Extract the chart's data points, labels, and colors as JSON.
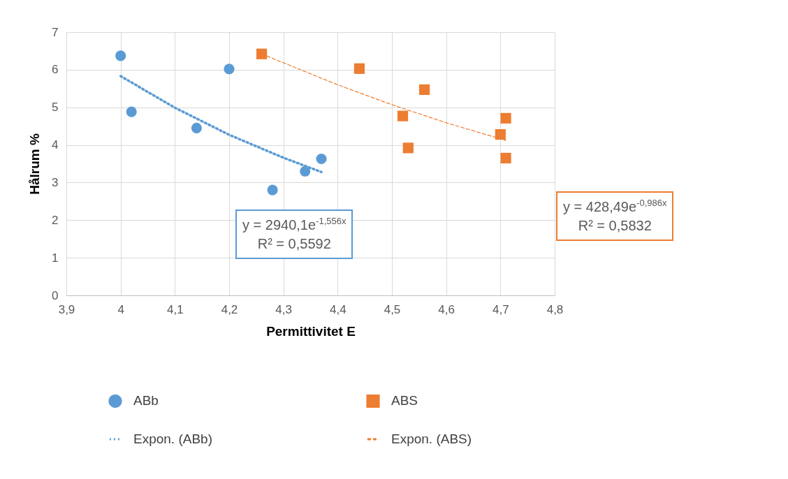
{
  "chart_data": {
    "type": "scatter",
    "xlabel": "Permittivitet E",
    "ylabel": "Hålrum %",
    "xlim": [
      3.9,
      4.8
    ],
    "xticks": [
      {
        "value": 3.9,
        "label": "3,9"
      },
      4,
      {
        "value": 4.1,
        "label": "4,1"
      },
      {
        "value": 4.2,
        "label": "4,2"
      },
      {
        "value": 4.3,
        "label": "4,3"
      },
      {
        "value": 4.4,
        "label": "4,4"
      },
      {
        "value": 4.5,
        "label": "4,5"
      },
      {
        "value": 4.6,
        "label": "4,6"
      },
      {
        "value": 4.7,
        "label": "4,7"
      },
      {
        "value": 4.8,
        "label": "4,8"
      }
    ],
    "ylim": [
      0,
      7
    ],
    "yticks": [
      0,
      1,
      2,
      3,
      4,
      5,
      6,
      7
    ],
    "grid": true,
    "legend": "bottom",
    "series": [
      {
        "name": "ABb",
        "marker": "circle",
        "color": "#5b9bd5",
        "x": [
          4.0,
          4.02,
          4.14,
          4.2,
          4.28,
          4.34,
          4.37
        ],
        "values": [
          6.37,
          4.88,
          4.45,
          6.02,
          2.8,
          3.3,
          3.63
        ]
      },
      {
        "name": "ABS",
        "marker": "square",
        "color": "#ed7d31",
        "x": [
          4.26,
          4.44,
          4.52,
          4.53,
          4.56,
          4.7,
          4.71,
          4.71
        ],
        "values": [
          6.42,
          6.03,
          4.77,
          3.92,
          5.47,
          4.28,
          4.71,
          3.65
        ]
      },
      {
        "name": "Expon. (ABb)",
        "type": "line",
        "marker": "none",
        "line_style": "dotted",
        "color": "#5b9bd5",
        "x": [
          4.0,
          4.1,
          4.2,
          4.3,
          4.37
        ],
        "values": [
          5.83,
          4.99,
          4.27,
          3.66,
          3.28
        ]
      },
      {
        "name": "Expon. (ABS)",
        "type": "line",
        "marker": "none",
        "line_style": "dashed",
        "color": "#ed7d31",
        "x": [
          4.26,
          4.4,
          4.5,
          4.6,
          4.71
        ],
        "values": [
          6.42,
          5.6,
          5.07,
          4.59,
          4.12
        ]
      }
    ],
    "annotations": [
      "y = 2940,1e$^{-1,556x}$",
      "R² = 0,5592",
      "y = 428,49e$^{-0,986x}$",
      "R² = 0,5832"
    ]
  }
}
